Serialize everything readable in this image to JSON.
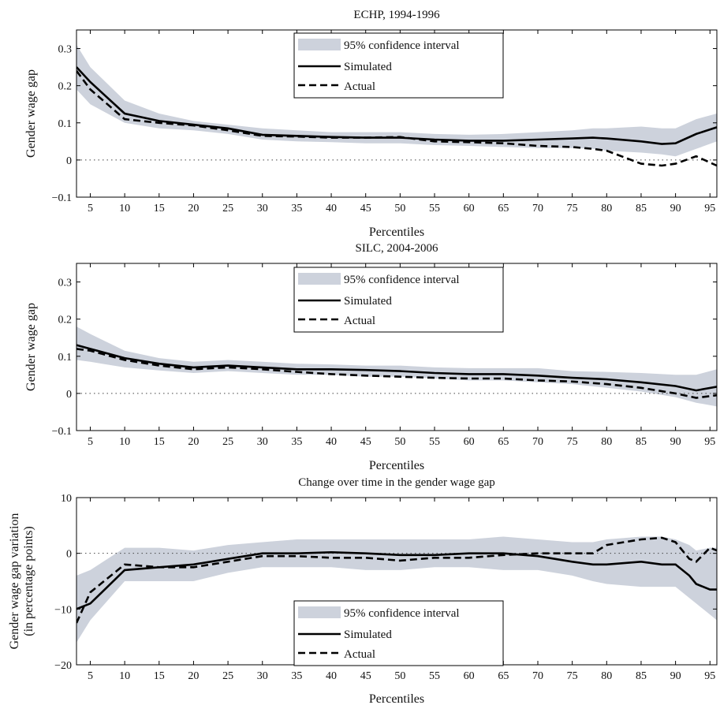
{
  "figure": {
    "xlabel": "Percentiles",
    "legend_labels": [
      "95% confidence interval",
      "Simulated",
      "Actual"
    ],
    "colors": {
      "ci_band": "#cdd2dc",
      "simulated": "#000000",
      "actual": "#000000",
      "zero_line": "#444444"
    }
  },
  "chart_data": [
    {
      "type": "line",
      "title": "ECHP, 1994-1996",
      "xlabel": "Percentiles",
      "ylabel": "Gender wage gap",
      "xlim": [
        3,
        96
      ],
      "ylim": [
        -0.1,
        0.35
      ],
      "xticks": [
        5,
        10,
        15,
        20,
        25,
        30,
        35,
        40,
        45,
        50,
        55,
        60,
        65,
        70,
        75,
        80,
        85,
        90,
        95
      ],
      "yticks": [
        -0.1,
        0,
        0.1,
        0.2,
        0.3
      ],
      "ytick_labels": [
        "−0.1",
        "0",
        "0.1",
        "0.2",
        "0.3"
      ],
      "legend_position": "top-center",
      "zero_line": true,
      "x": [
        3,
        5,
        10,
        15,
        20,
        25,
        30,
        35,
        40,
        45,
        50,
        55,
        60,
        65,
        70,
        75,
        78,
        80,
        85,
        88,
        90,
        93,
        96
      ],
      "series": [
        {
          "name": "95% confidence interval",
          "style": "band",
          "lower": [
            0.19,
            0.15,
            0.1,
            0.085,
            0.08,
            0.07,
            0.055,
            0.05,
            0.048,
            0.045,
            0.045,
            0.04,
            0.038,
            0.035,
            0.032,
            0.032,
            0.03,
            0.025,
            0.02,
            0.015,
            0.01,
            0.03,
            0.05
          ],
          "upper": [
            0.31,
            0.25,
            0.16,
            0.125,
            0.105,
            0.095,
            0.085,
            0.08,
            0.075,
            0.075,
            0.075,
            0.07,
            0.068,
            0.07,
            0.075,
            0.08,
            0.085,
            0.085,
            0.09,
            0.085,
            0.085,
            0.11,
            0.125
          ]
        },
        {
          "name": "Simulated",
          "style": "solid",
          "values": [
            0.25,
            0.21,
            0.125,
            0.105,
            0.095,
            0.085,
            0.068,
            0.065,
            0.062,
            0.06,
            0.06,
            0.055,
            0.052,
            0.052,
            0.055,
            0.058,
            0.06,
            0.058,
            0.05,
            0.043,
            0.045,
            0.07,
            0.088
          ]
        },
        {
          "name": "Actual",
          "style": "dashed",
          "values": [
            0.24,
            0.19,
            0.11,
            0.1,
            0.093,
            0.08,
            0.065,
            0.063,
            0.06,
            0.06,
            0.062,
            0.05,
            0.048,
            0.045,
            0.038,
            0.035,
            0.03,
            0.025,
            -0.01,
            -0.015,
            -0.01,
            0.01,
            -0.015
          ]
        }
      ]
    },
    {
      "type": "line",
      "title": "SILC, 2004-2006",
      "xlabel": "Percentiles",
      "ylabel": "Gender wage gap",
      "xlim": [
        3,
        96
      ],
      "ylim": [
        -0.1,
        0.35
      ],
      "xticks": [
        5,
        10,
        15,
        20,
        25,
        30,
        35,
        40,
        45,
        50,
        55,
        60,
        65,
        70,
        75,
        80,
        85,
        90,
        95
      ],
      "yticks": [
        -0.1,
        0,
        0.1,
        0.2,
        0.3
      ],
      "ytick_labels": [
        "−0.1",
        "0",
        "0.1",
        "0.2",
        "0.3"
      ],
      "legend_position": "top-center",
      "zero_line": true,
      "x": [
        3,
        5,
        10,
        15,
        20,
        25,
        30,
        35,
        40,
        45,
        50,
        55,
        60,
        65,
        70,
        75,
        80,
        85,
        90,
        93,
        96
      ],
      "series": [
        {
          "name": "95% confidence interval",
          "style": "band",
          "lower": [
            0.09,
            0.085,
            0.07,
            0.062,
            0.055,
            0.06,
            0.055,
            0.05,
            0.05,
            0.045,
            0.045,
            0.04,
            0.035,
            0.035,
            0.03,
            0.025,
            0.015,
            0.005,
            -0.01,
            -0.025,
            -0.035
          ],
          "upper": [
            0.18,
            0.16,
            0.115,
            0.095,
            0.085,
            0.09,
            0.085,
            0.08,
            0.078,
            0.075,
            0.075,
            0.07,
            0.068,
            0.068,
            0.068,
            0.06,
            0.058,
            0.055,
            0.05,
            0.05,
            0.065
          ]
        },
        {
          "name": "Simulated",
          "style": "solid",
          "values": [
            0.13,
            0.12,
            0.095,
            0.08,
            0.07,
            0.075,
            0.07,
            0.065,
            0.065,
            0.063,
            0.06,
            0.055,
            0.052,
            0.052,
            0.048,
            0.042,
            0.038,
            0.03,
            0.02,
            0.008,
            0.018
          ]
        },
        {
          "name": "Actual",
          "style": "dashed",
          "values": [
            0.12,
            0.115,
            0.09,
            0.075,
            0.065,
            0.07,
            0.065,
            0.058,
            0.052,
            0.048,
            0.045,
            0.042,
            0.04,
            0.04,
            0.035,
            0.032,
            0.025,
            0.015,
            0.0,
            -0.012,
            -0.005
          ]
        }
      ]
    },
    {
      "type": "line",
      "title": "Change over time in the gender wage gap",
      "xlabel": "Percentiles",
      "ylabel": [
        "Gender wage gap variation",
        "(in percentage points)"
      ],
      "xlim": [
        3,
        96
      ],
      "ylim": [
        -20,
        10
      ],
      "xticks": [
        5,
        10,
        15,
        20,
        25,
        30,
        35,
        40,
        45,
        50,
        55,
        60,
        65,
        70,
        75,
        80,
        85,
        90,
        95
      ],
      "yticks": [
        -20,
        -10,
        0,
        10
      ],
      "ytick_labels": [
        "−20",
        "−10",
        "0",
        "10"
      ],
      "legend_position": "bottom-center",
      "zero_line": true,
      "x": [
        3,
        5,
        10,
        15,
        20,
        25,
        30,
        35,
        40,
        45,
        50,
        55,
        60,
        65,
        70,
        75,
        78,
        80,
        85,
        88,
        90,
        92,
        93,
        95,
        96
      ],
      "series": [
        {
          "name": "95% confidence interval",
          "style": "band",
          "lower": [
            -16,
            -12,
            -5,
            -5,
            -5,
            -3.5,
            -2.5,
            -2.5,
            -2.5,
            -3,
            -3,
            -2.5,
            -2.5,
            -3,
            -3,
            -4,
            -5,
            -5.5,
            -6,
            -6,
            -6,
            -8,
            -9,
            -11,
            -12
          ],
          "upper": [
            -4,
            -3,
            1,
            1,
            0.5,
            1.5,
            2,
            2.5,
            2.5,
            2.5,
            2.5,
            2.5,
            2.5,
            3,
            2.5,
            2,
            2,
            2.5,
            3,
            3,
            2.5,
            1.5,
            0.5,
            1,
            1
          ]
        },
        {
          "name": "Simulated",
          "style": "solid",
          "values": [
            -10,
            -9,
            -3,
            -2.5,
            -2,
            -1,
            0,
            0,
            0.2,
            0,
            -0.3,
            -0.3,
            0,
            0,
            -0.5,
            -1.5,
            -2,
            -2,
            -1.5,
            -2,
            -2,
            -4,
            -5.5,
            -6.5,
            -6.5
          ]
        },
        {
          "name": "Actual",
          "style": "dashed",
          "values": [
            -12.5,
            -7,
            -2,
            -2.5,
            -2.5,
            -1.5,
            -0.5,
            -0.5,
            -0.8,
            -0.8,
            -1.3,
            -0.8,
            -0.8,
            -0.3,
            0,
            0,
            0,
            1.5,
            2.5,
            2.8,
            2,
            -1,
            -1.5,
            1,
            0.5
          ]
        }
      ]
    }
  ]
}
